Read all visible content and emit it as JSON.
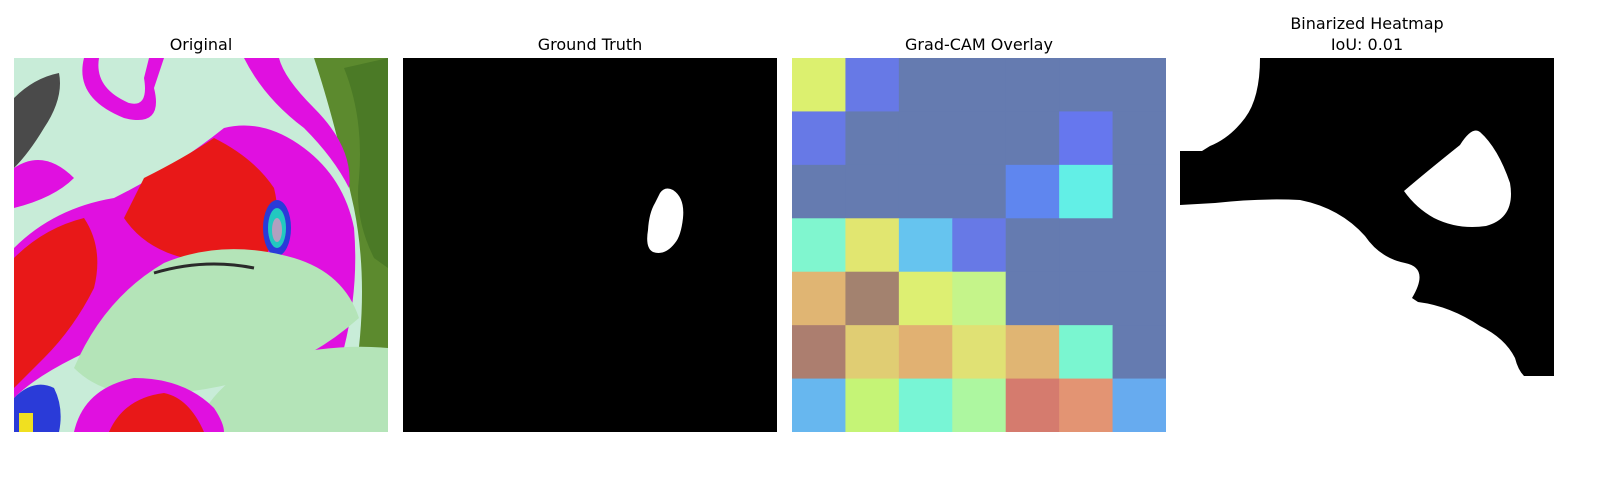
{
  "panels": {
    "original": {
      "title": "Original"
    },
    "ground_truth": {
      "title": "Ground Truth"
    },
    "overlay": {
      "title": "Grad-CAM Overlay",
      "grid_colors": [
        [
          "#dcf06f",
          "#6779e6",
          "#657bb0",
          "#657bb0",
          "#657bb0",
          "#657bb0",
          "#657bb0"
        ],
        [
          "#6779e6",
          "#657bb0",
          "#657bb0",
          "#657bb0",
          "#657bb0",
          "#6677ee",
          "#657bb0"
        ],
        [
          "#657bb0",
          "#657bb0",
          "#657bb0",
          "#657bb0",
          "#5f86ef",
          "#62efe6",
          "#657bb0"
        ],
        [
          "#80f6cf",
          "#e1e670",
          "#66c4ef",
          "#6779e6",
          "#657bb0",
          "#657bb0",
          "#657bb0"
        ],
        [
          "#e0b573",
          "#a3826f",
          "#ddef72",
          "#c5f48a",
          "#657bb0",
          "#657bb0",
          "#657bb0"
        ],
        [
          "#ac7e6f",
          "#e0cd73",
          "#e1b172",
          "#e0e174",
          "#e0b573",
          "#7af6d0",
          "#657bb0"
        ],
        [
          "#67b7ef",
          "#c5f476",
          "#78f5d5",
          "#adf7a0",
          "#d57b6e",
          "#e39473",
          "#67abef"
        ]
      ]
    },
    "binarized": {
      "title": "Binarized Heatmap",
      "subtitle": "IoU: 0.01"
    }
  },
  "colors": {
    "mask_background": "#000000",
    "mask_foreground": "#ffffff"
  }
}
